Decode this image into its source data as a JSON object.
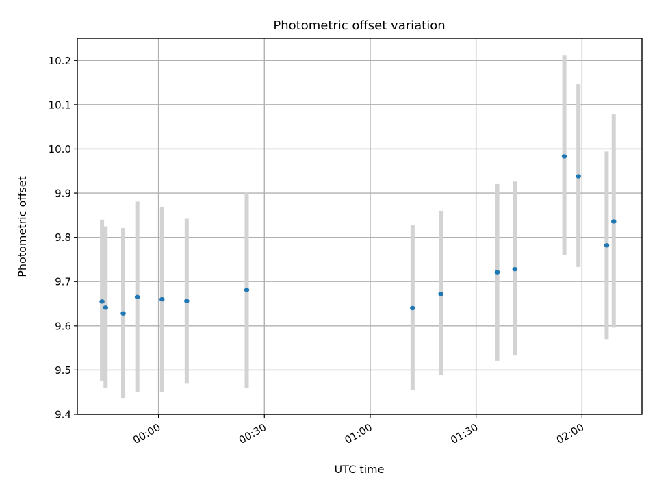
{
  "chart_data": {
    "type": "scatter",
    "title": "Photometric offset variation",
    "xlabel": "UTC time",
    "ylabel": "Photometric offset",
    "x_axis": "time",
    "xlim": [
      "-00:23",
      "02:17"
    ],
    "ylim": [
      9.4,
      10.25
    ],
    "xticks": [
      "00:00",
      "00:30",
      "01:00",
      "01:30",
      "02:00"
    ],
    "xtick_label_rotation_deg": 30,
    "yticks": [
      "9.4",
      "9.5",
      "9.6",
      "9.7",
      "9.8",
      "9.9",
      "10.0",
      "10.1",
      "10.2"
    ],
    "grid": true,
    "legend": "none",
    "marker_color": "#1f77b4",
    "errorbar_color": "#d3d3d3",
    "points": [
      {
        "t": "-00:16",
        "y": 9.655,
        "ylo": 9.475,
        "yhi": 9.84
      },
      {
        "t": "-00:15",
        "y": 9.641,
        "ylo": 9.46,
        "yhi": 9.825
      },
      {
        "t": "-00:10",
        "y": 9.628,
        "ylo": 9.437,
        "yhi": 9.821
      },
      {
        "t": "-00:06",
        "y": 9.665,
        "ylo": 9.45,
        "yhi": 9.881
      },
      {
        "t": "00:01",
        "y": 9.66,
        "ylo": 9.45,
        "yhi": 9.869
      },
      {
        "t": "00:08",
        "y": 9.656,
        "ylo": 9.469,
        "yhi": 9.842
      },
      {
        "t": "00:25",
        "y": 9.681,
        "ylo": 9.459,
        "yhi": 9.903
      },
      {
        "t": "01:12",
        "y": 9.64,
        "ylo": 9.455,
        "yhi": 9.828
      },
      {
        "t": "01:20",
        "y": 9.672,
        "ylo": 9.489,
        "yhi": 9.86
      },
      {
        "t": "01:36",
        "y": 9.721,
        "ylo": 9.521,
        "yhi": 9.922
      },
      {
        "t": "01:41",
        "y": 9.728,
        "ylo": 9.533,
        "yhi": 9.926
      },
      {
        "t": "01:55",
        "y": 9.983,
        "ylo": 9.76,
        "yhi": 10.211
      },
      {
        "t": "01:59",
        "y": 9.938,
        "ylo": 9.733,
        "yhi": 10.146
      },
      {
        "t": "02:07",
        "y": 9.782,
        "ylo": 9.57,
        "yhi": 9.994
      },
      {
        "t": "02:09",
        "y": 9.836,
        "ylo": 9.596,
        "yhi": 10.078
      }
    ]
  }
}
